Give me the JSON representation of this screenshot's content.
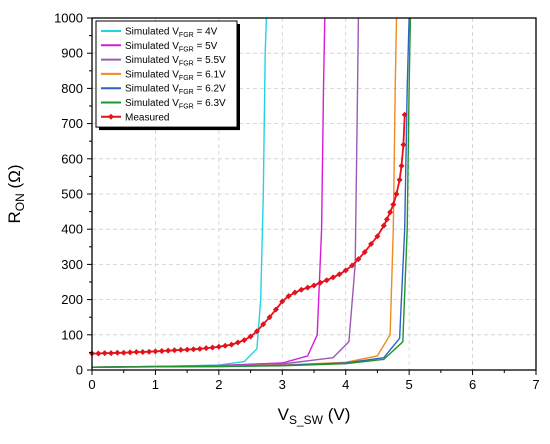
{
  "chart_data": {
    "type": "line",
    "title": "",
    "xlabel": {
      "main": "V",
      "sub": "S_SW",
      "unit": " (V)"
    },
    "ylabel": {
      "main": "R",
      "sub": "ON",
      "unit": " (Ω)"
    },
    "xlim": [
      0,
      7
    ],
    "ylim": [
      0,
      1000
    ],
    "xticks": [
      "0",
      "1",
      "2",
      "3",
      "4",
      "5",
      "6",
      "7"
    ],
    "yticks": [
      "0",
      "100",
      "200",
      "300",
      "400",
      "500",
      "600",
      "700",
      "800",
      "900",
      "1000"
    ],
    "grid": true,
    "legend_position": "top-left",
    "series": [
      {
        "label": {
          "pre": "Simulated V",
          "sub": "FGR",
          "post": " = 4V"
        },
        "color": "#22d3e6",
        "marker": "none",
        "x": [
          0,
          1,
          2,
          2.4,
          2.6,
          2.66,
          2.7,
          2.73,
          2.75
        ],
        "y": [
          8,
          10,
          14,
          24,
          60,
          200,
          500,
          900,
          1000
        ]
      },
      {
        "label": {
          "pre": "Simulated V",
          "sub": "FGR",
          "post": " = 5V"
        },
        "color": "#d61cd6",
        "marker": "none",
        "x": [
          0,
          1,
          2,
          3,
          3.4,
          3.55,
          3.62,
          3.65,
          3.67
        ],
        "y": [
          8,
          10,
          13,
          20,
          40,
          100,
          400,
          800,
          1000
        ]
      },
      {
        "label": {
          "pre": "Simulated V",
          "sub": "FGR",
          "post": " = 5.5V"
        },
        "color": "#9b5ab5",
        "marker": "none",
        "x": [
          0,
          1,
          2,
          3,
          3.8,
          4.05,
          4.15,
          4.18,
          4.2
        ],
        "y": [
          8,
          10,
          12,
          17,
          35,
          80,
          300,
          700,
          1000
        ]
      },
      {
        "label": {
          "pre": "Simulated V",
          "sub": "FGR",
          "post": " = 6.1V"
        },
        "color": "#f08a1e",
        "marker": "none",
        "x": [
          0,
          1,
          2,
          3,
          4,
          4.5,
          4.7,
          4.75,
          4.78,
          4.8
        ],
        "y": [
          8,
          9,
          11,
          14,
          22,
          40,
          100,
          400,
          800,
          1000
        ]
      },
      {
        "label": {
          "pre": "Simulated V",
          "sub": "FGR",
          "post": " = 6.2V"
        },
        "color": "#2e62c9",
        "marker": "none",
        "x": [
          0,
          1,
          2,
          3,
          4,
          4.6,
          4.85,
          4.93,
          4.97,
          5.0
        ],
        "y": [
          8,
          9,
          10,
          13,
          20,
          35,
          90,
          400,
          800,
          1000
        ]
      },
      {
        "label": {
          "pre": "Simulated V",
          "sub": "FGR",
          "post": " = 6.3V"
        },
        "color": "#20952a",
        "marker": "none",
        "x": [
          0,
          1,
          2,
          3,
          4,
          4.6,
          4.9,
          4.97,
          5.0,
          5.02
        ],
        "y": [
          8,
          9,
          10,
          12,
          18,
          30,
          80,
          400,
          800,
          1000
        ]
      },
      {
        "label": {
          "pre": "Measured",
          "sub": "",
          "post": ""
        },
        "color": "#e3121b",
        "marker": "diamond",
        "x": [
          0,
          0.1,
          0.2,
          0.3,
          0.4,
          0.5,
          0.6,
          0.7,
          0.8,
          0.9,
          1.0,
          1.1,
          1.2,
          1.3,
          1.4,
          1.5,
          1.6,
          1.7,
          1.8,
          1.9,
          2.0,
          2.1,
          2.2,
          2.3,
          2.4,
          2.5,
          2.6,
          2.7,
          2.8,
          2.9,
          3.0,
          3.1,
          3.2,
          3.3,
          3.4,
          3.5,
          3.6,
          3.7,
          3.8,
          3.9,
          4.0,
          4.1,
          4.2,
          4.3,
          4.4,
          4.5,
          4.6,
          4.65,
          4.7,
          4.75,
          4.8,
          4.85,
          4.88,
          4.91,
          4.93
        ],
        "y": [
          47,
          47,
          48,
          48,
          49,
          49,
          50,
          51,
          51,
          52,
          53,
          54,
          55,
          56,
          57,
          58,
          59,
          60,
          62,
          64,
          66,
          69,
          72,
          78,
          85,
          95,
          110,
          130,
          150,
          172,
          195,
          210,
          220,
          228,
          234,
          240,
          248,
          255,
          263,
          272,
          283,
          297,
          315,
          335,
          358,
          380,
          410,
          428,
          448,
          470,
          500,
          540,
          580,
          640,
          725
        ]
      }
    ]
  }
}
